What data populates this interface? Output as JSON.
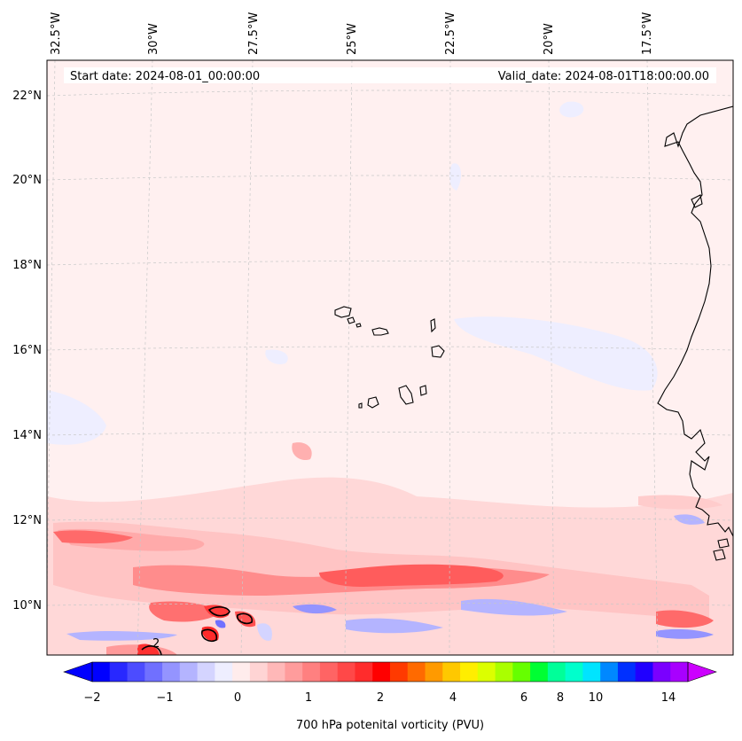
{
  "map": {
    "start_label": "Start date: 2024-08-01_00:00:00",
    "valid_label": "Valid_date: 2024-08-01T18:00:00.00",
    "field": "700 hPa potential vorticity",
    "units": "PVU",
    "lon_labels": [
      "32.5°W",
      "30°W",
      "27.5°W",
      "25°W",
      "22.5°W",
      "20°W",
      "17.5°W"
    ],
    "lat_labels": [
      "22°N",
      "20°N",
      "18°N",
      "16°N",
      "14°N",
      "12°N",
      "10°N"
    ],
    "gridlines": true,
    "contour_label": "2"
  },
  "colorbar": {
    "label": "700 hPa potenital vorticity (PVU)",
    "extend": "both",
    "tick_labels": [
      "−2",
      "−1",
      "0",
      "1",
      "2",
      "4",
      "6",
      "8",
      "10",
      "14"
    ],
    "colors": [
      "#0000ff",
      "#2828ff",
      "#4c4cff",
      "#7070ff",
      "#9494ff",
      "#b4b4ff",
      "#d4d4ff",
      "#eeeeff",
      "#ffecec",
      "#ffd4d4",
      "#ffb8b8",
      "#ff9c9c",
      "#ff8080",
      "#ff6464",
      "#ff4848",
      "#ff2c2c",
      "#ff0000",
      "#ff3a00",
      "#ff6a00",
      "#ff9a00",
      "#ffc800",
      "#ffee00",
      "#dcff00",
      "#aaff00",
      "#66ff00",
      "#00ff33",
      "#00ff99",
      "#00ffcc",
      "#00e4ff",
      "#0088ff",
      "#0030ff",
      "#2000ff",
      "#7a00ff",
      "#a800ff"
    ],
    "under_color": "#0000ff",
    "over_color": "#cc00ff"
  }
}
